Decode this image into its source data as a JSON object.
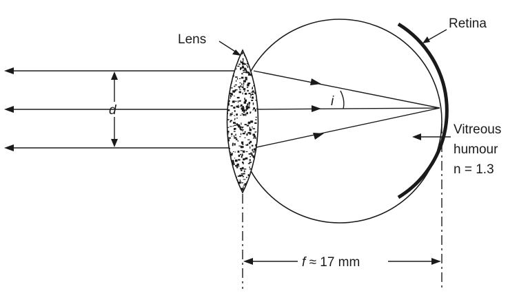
{
  "labels": {
    "lens": "Lens",
    "retina": "Retina",
    "vitreous_line1": "Vitreous",
    "vitreous_line2": "humour",
    "vitreous_line3": "n = 1.3",
    "diameter": "d",
    "angle": "i",
    "focal": "f ≈ 17 mm"
  },
  "colors": {
    "ink": "#1a1a1a",
    "background": "#ffffff"
  }
}
